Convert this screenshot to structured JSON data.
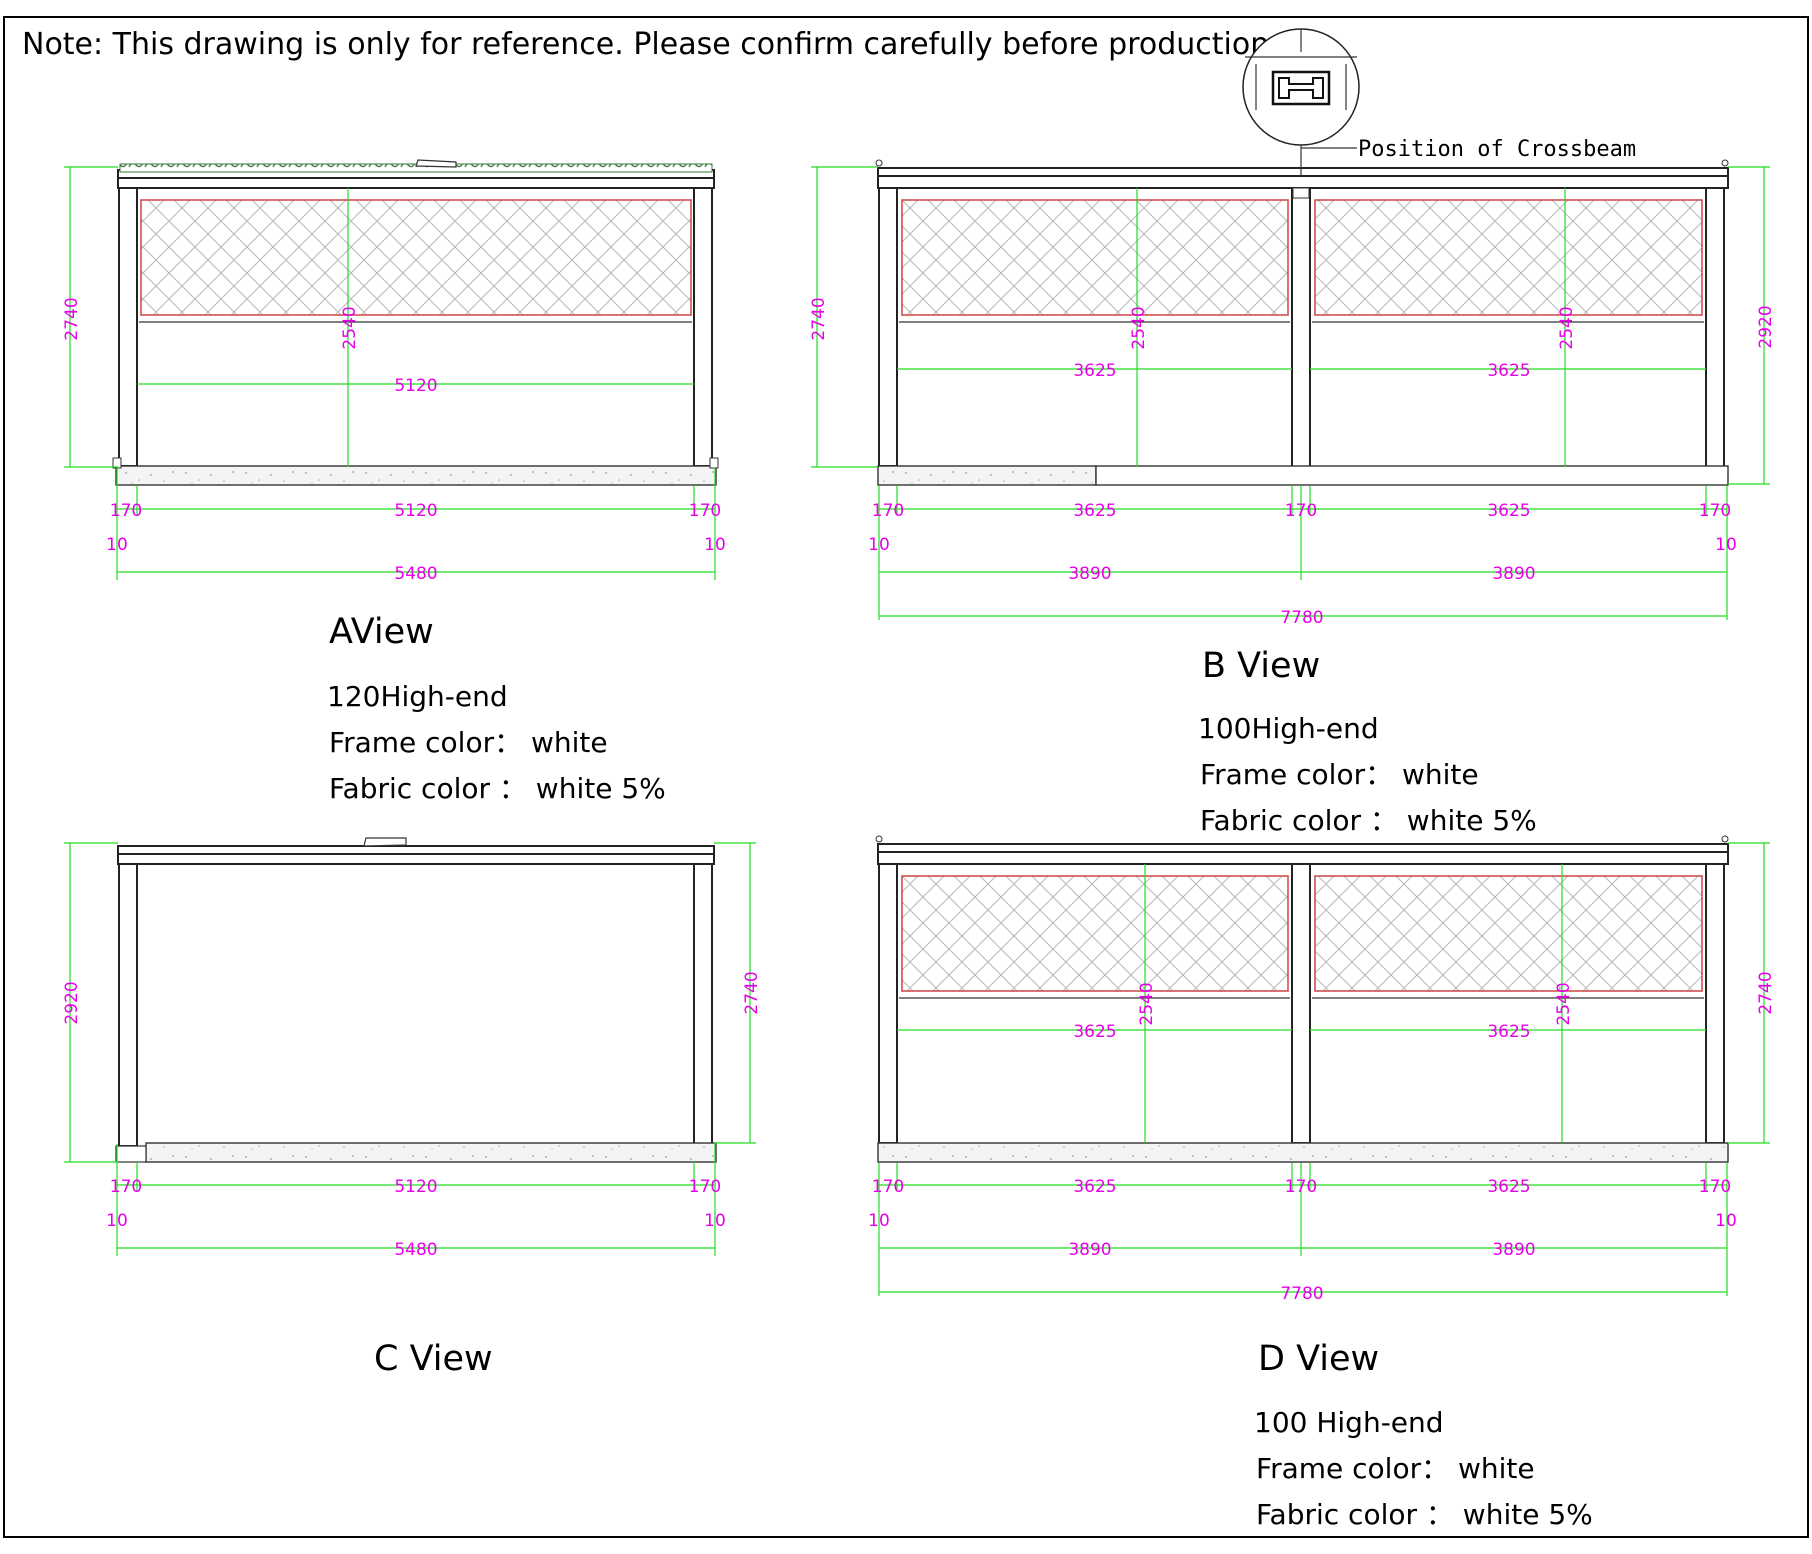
{
  "note": "Note: This drawing is only for reference. Please confirm carefully before production.",
  "callout": {
    "label": "Position of Crossbeam"
  },
  "views": {
    "a": {
      "title": "AView",
      "specs": [
        "120High-end",
        "Frame color： white",
        "Fabric color ： white 5%"
      ],
      "dims": {
        "height_left": "2740",
        "inner_height": "2540",
        "inner_width": "5120",
        "post_left": "170",
        "span": "5120",
        "post_right": "170",
        "edge_left": "10",
        "edge_right": "10",
        "total": "5480"
      }
    },
    "b": {
      "title": "B View",
      "specs": [
        "100High-end",
        "Frame color： white",
        "Fabric color ： white 5%"
      ],
      "dims": {
        "height_left": "2740",
        "height_right": "2920",
        "inner_height_1": "2540",
        "inner_height_2": "2540",
        "inner_width_1": "3625",
        "inner_width_2": "3625",
        "post_1": "170",
        "span_1": "3625",
        "post_2": "170",
        "span_2": "3625",
        "post_3": "170",
        "edge_left": "10",
        "edge_right": "10",
        "half_1": "3890",
        "half_2": "3890",
        "total": "7780"
      }
    },
    "c": {
      "title": "C View",
      "dims": {
        "height_left": "2920",
        "height_right": "2740",
        "post_left": "170",
        "span": "5120",
        "post_right": "170",
        "edge_left": "10",
        "edge_right": "10",
        "total": "5480"
      }
    },
    "d": {
      "title": "D View",
      "specs": [
        "100 High-end",
        "Frame color： white",
        "Fabric color ： white 5%"
      ],
      "dims": {
        "height_right": "2740",
        "inner_height_1": "2540",
        "inner_height_2": "2540",
        "inner_width_1": "3625",
        "inner_width_2": "3625",
        "post_1": "170",
        "span_1": "3625",
        "post_2": "170",
        "span_2": "3625",
        "post_3": "170",
        "edge_left": "10",
        "edge_right": "10",
        "half_1": "3890",
        "half_2": "3890",
        "total": "7780"
      }
    }
  }
}
